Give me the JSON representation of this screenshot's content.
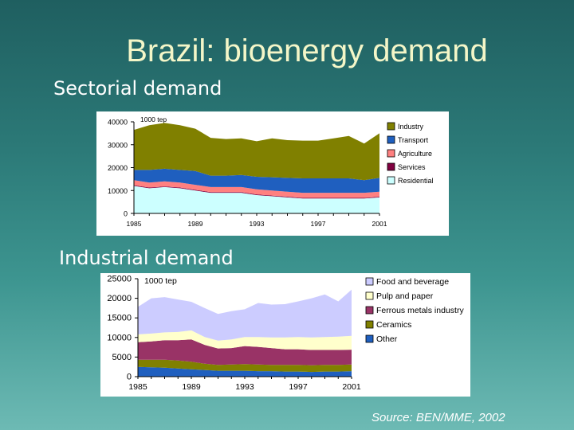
{
  "slide": {
    "title": "Brazil: bioenergy demand",
    "sectorial_heading": "Sectorial demand",
    "industrial_heading": "Industrial demand",
    "source": "Source: BEN/MME, 2002"
  },
  "colors": {
    "industry": "#808000",
    "transport": "#1f5fbf",
    "agriculture": "#ff8080",
    "services": "#800040",
    "residential": "#ccffff",
    "food_and_beverage": "#ccccff",
    "pulp_and_paper": "#ffffcc",
    "ferrous_metals_industry": "#993366",
    "ceramics": "#808000",
    "other": "#1f5fbf"
  },
  "chart_data": [
    {
      "type": "area",
      "stacked": true,
      "unit_label": "1000 tep",
      "x": [
        1985,
        1986,
        1987,
        1988,
        1989,
        1990,
        1991,
        1992,
        1993,
        1994,
        1995,
        1996,
        1997,
        1998,
        1999,
        2000,
        2001
      ],
      "xticks": [
        "1985",
        "1989",
        "1993",
        "1997",
        "2001"
      ],
      "yticks": [
        "0",
        "10000",
        "20000",
        "30000",
        "40000"
      ],
      "ylim": [
        0,
        40000
      ],
      "legend_position": "right",
      "series": [
        {
          "name": "Residential",
          "color_key": "residential",
          "values": [
            12000,
            11000,
            11500,
            11000,
            10000,
            9000,
            9000,
            9000,
            8000,
            7500,
            7000,
            6500,
            6500,
            6500,
            6500,
            6500,
            7000
          ]
        },
        {
          "name": "Services",
          "color_key": "services",
          "values": [
            300,
            300,
            300,
            300,
            300,
            300,
            300,
            300,
            300,
            300,
            300,
            300,
            300,
            300,
            300,
            300,
            300
          ]
        },
        {
          "name": "Agriculture",
          "color_key": "agriculture",
          "values": [
            2200,
            2200,
            2200,
            2200,
            2200,
            2200,
            2200,
            2200,
            2200,
            2200,
            2200,
            2200,
            2200,
            2200,
            2200,
            2200,
            2200
          ]
        },
        {
          "name": "Transport",
          "color_key": "transport",
          "values": [
            4500,
            5500,
            5500,
            5500,
            6000,
            5000,
            5000,
            5300,
            5500,
            5800,
            6000,
            6300,
            6300,
            6300,
            6300,
            5500,
            6000
          ]
        },
        {
          "name": "Industry",
          "color_key": "industry",
          "values": [
            17500,
            19500,
            20000,
            19500,
            18500,
            16500,
            16000,
            16000,
            15500,
            17000,
            16500,
            16500,
            16500,
            17500,
            18500,
            16000,
            19500
          ]
        }
      ]
    },
    {
      "type": "area",
      "stacked": true,
      "unit_label": "1000 tep",
      "x": [
        1985,
        1986,
        1987,
        1988,
        1989,
        1990,
        1991,
        1992,
        1993,
        1994,
        1995,
        1996,
        1997,
        1998,
        1999,
        2000,
        2001
      ],
      "xticks": [
        "1985",
        "1989",
        "1993",
        "1997",
        "2001"
      ],
      "yticks": [
        "0",
        "5000",
        "10000",
        "15000",
        "20000",
        "25000"
      ],
      "ylim": [
        0,
        25000
      ],
      "legend_position": "right",
      "series": [
        {
          "name": "Other",
          "color_key": "other",
          "values": [
            2500,
            2400,
            2300,
            2100,
            1900,
            1700,
            1500,
            1500,
            1500,
            1400,
            1400,
            1300,
            1300,
            1200,
            1300,
            1300,
            1400
          ]
        },
        {
          "name": "Ceramics",
          "color_key": "ceramics",
          "values": [
            1800,
            1900,
            2000,
            2000,
            1900,
            1600,
            1500,
            1600,
            1700,
            1700,
            1600,
            1700,
            1700,
            1700,
            1700,
            1700,
            1700
          ]
        },
        {
          "name": "Ferrous metals industry",
          "color_key": "ferrous_metals_industry",
          "values": [
            4500,
            4700,
            5000,
            5200,
            5700,
            4800,
            4200,
            4200,
            4600,
            4500,
            4300,
            4000,
            4000,
            3900,
            3800,
            3800,
            3800
          ]
        },
        {
          "name": "Pulp and paper",
          "color_key": "pulp_and_paper",
          "values": [
            2000,
            2000,
            2000,
            2100,
            2300,
            2000,
            2000,
            2200,
            2300,
            2500,
            2700,
            3000,
            3100,
            3200,
            3300,
            3400,
            3500
          ]
        },
        {
          "name": "Food and beverage",
          "color_key": "food_and_beverage",
          "values": [
            7000,
            9000,
            9000,
            8300,
            7300,
            7400,
            6800,
            7200,
            7100,
            8700,
            8400,
            8500,
            9100,
            10000,
            10900,
            9000,
            11800
          ]
        }
      ]
    }
  ]
}
